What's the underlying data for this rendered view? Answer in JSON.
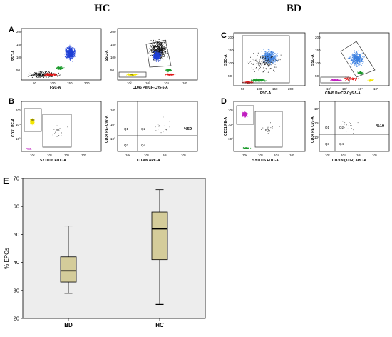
{
  "headers": {
    "left": "HC",
    "right": "BD"
  },
  "panels": {
    "A": {
      "letter": "A",
      "scatter": {
        "xlabel": "FSC-A",
        "ylabel": "SSC-A",
        "yticks": [
          "50",
          "100",
          "150",
          "200"
        ],
        "xticks": [
          "50",
          "100",
          "150",
          "200"
        ]
      },
      "cd45": {
        "xlabel": "CD45 PerCP-Cy5-5-A",
        "ylabel": "SSC-A",
        "yticks": [
          "50",
          "100",
          "150",
          "200"
        ],
        "xticks": [
          "10²",
          "10³",
          "10⁴",
          "10⁵"
        ],
        "gate_label": "P4"
      }
    },
    "B": {
      "letter": "B",
      "syto": {
        "xlabel": "SYTO16 FITC-A",
        "ylabel": "CD31 PE-A",
        "yticks": [
          "10³",
          "10⁴",
          "10⁵"
        ],
        "xticks": [
          "10²",
          "10³",
          "10⁴",
          "10⁵"
        ],
        "gate1": "P5",
        "gate2": "P6"
      },
      "quad": {
        "xlabel": "CD309 APC-A",
        "ylabel": "CD34 PE- Cy7-A",
        "yticks": [
          "10³",
          "10⁴",
          "10⁵"
        ],
        "xticks": [
          "10²",
          "10³",
          "10⁴",
          "10⁵"
        ],
        "q1": "Q1",
        "q2": "Q2",
        "q3": "Q3",
        "q4": "Q4",
        "percent": "%59"
      }
    },
    "C": {
      "letter": "C",
      "scatter": {
        "xlabel": "FSC-A",
        "ylabel": "SSC-A",
        "yticks": [
          "50",
          "100",
          "150",
          "200"
        ],
        "xticks": [
          "50",
          "100",
          "150",
          "200"
        ],
        "gate_label": "P1"
      },
      "cd45": {
        "xlabel": "CD45 PerCP-Cy5-5-A",
        "ylabel": "SSC-A",
        "yticks": [
          "50",
          "100",
          "150",
          "200"
        ],
        "xticks": [
          "10²",
          "10³",
          "10⁴",
          "10⁵"
        ]
      }
    },
    "D": {
      "letter": "D",
      "syto": {
        "xlabel": "SYTO16 FITC-A",
        "ylabel": "CD31 PE-A",
        "yticks": [
          "10³",
          "10⁴",
          "10⁵"
        ],
        "xticks": [
          "10²",
          "10³",
          "10⁴",
          "10⁵"
        ],
        "gate2": "P3"
      },
      "quad": {
        "xlabel": "CD309 (KDR) APC-A",
        "ylabel": "CD34 PE Cy7-A",
        "yticks": [
          "10³",
          "10⁴",
          "10⁵"
        ],
        "xticks": [
          "10²",
          "10³",
          "10⁴",
          "10⁵"
        ],
        "q1": "Q1",
        "q2": "Q2",
        "q3": "Q3",
        "q4": "Q4",
        "percent": "%19"
      }
    }
  },
  "chart_data": {
    "type": "boxplot",
    "panel_letter": "E",
    "title": "",
    "xlabel": "",
    "ylabel": "% EPCs",
    "ylim": [
      20,
      70
    ],
    "yticks": [
      20,
      30,
      40,
      50,
      60,
      70
    ],
    "categories": [
      "BD",
      "HC"
    ],
    "boxes": [
      {
        "category": "BD",
        "min": 29,
        "q1": 33,
        "median": 37,
        "q3": 42,
        "max": 53
      },
      {
        "category": "HC",
        "min": 25,
        "q1": 41,
        "median": 52,
        "q3": 58,
        "max": 66
      }
    ],
    "colors": {
      "box_fill": "#d4cc9a",
      "plot_bg": "#ededed",
      "edge": "#000000"
    },
    "grid": false
  }
}
